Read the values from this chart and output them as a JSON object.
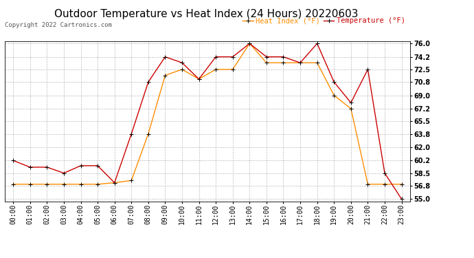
{
  "title": "Outdoor Temperature vs Heat Index (24 Hours) 20220603",
  "copyright": "Copyright 2022 Cartronics.com",
  "legend_heat": "Heat Index (°F)",
  "legend_temp": "Temperature (°F)",
  "hours": [
    "00:00",
    "01:00",
    "02:00",
    "03:00",
    "04:00",
    "05:00",
    "06:00",
    "07:00",
    "08:00",
    "09:00",
    "10:00",
    "11:00",
    "12:00",
    "13:00",
    "14:00",
    "15:00",
    "16:00",
    "17:00",
    "18:00",
    "19:00",
    "20:00",
    "21:00",
    "22:00",
    "23:00"
  ],
  "temperature": [
    60.2,
    59.3,
    59.3,
    58.5,
    59.5,
    59.5,
    57.2,
    63.8,
    70.8,
    74.2,
    73.4,
    71.2,
    74.2,
    74.2,
    76.0,
    74.2,
    74.2,
    73.4,
    76.0,
    70.8,
    68.0,
    72.5,
    58.5,
    55.0
  ],
  "heat_index": [
    57.0,
    57.0,
    57.0,
    57.0,
    57.0,
    57.0,
    57.2,
    57.5,
    63.8,
    71.7,
    72.5,
    71.2,
    72.5,
    72.5,
    76.0,
    73.4,
    73.4,
    73.4,
    73.4,
    69.0,
    67.2,
    57.0,
    57.0,
    57.0
  ],
  "temp_color": "#cc0000",
  "heat_color": "#ff8c00",
  "marker_color": "#000000",
  "bg_color": "#ffffff",
  "grid_color": "#aaaaaa",
  "ymin": 55.0,
  "ymax": 76.0,
  "yticks": [
    55.0,
    56.8,
    58.5,
    60.2,
    62.0,
    63.8,
    65.5,
    67.2,
    69.0,
    70.8,
    72.5,
    74.2,
    76.0
  ],
  "title_fontsize": 11,
  "label_fontsize": 7,
  "copyright_fontsize": 6.5,
  "legend_fontsize": 7.5
}
